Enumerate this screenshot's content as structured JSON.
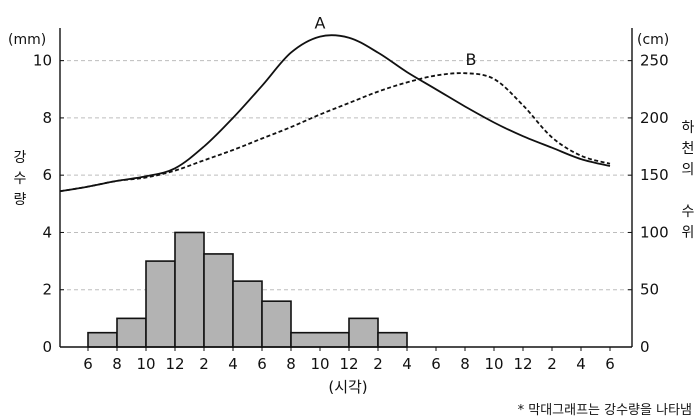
{
  "chart_data": {
    "type": "bar+line",
    "x_ticks": [
      "6",
      "8",
      "10",
      "12",
      "2",
      "4",
      "6",
      "8",
      "10",
      "12",
      "2",
      "4",
      "6",
      "8",
      "10",
      "12",
      "2",
      "4",
      "6"
    ],
    "xlabel": "(시각)",
    "y_left": {
      "unit": "(mm)",
      "label": [
        "강",
        "수",
        "량"
      ],
      "ylim": [
        0,
        11
      ],
      "ticks": [
        0,
        2,
        4,
        6,
        8,
        10
      ]
    },
    "y_right": {
      "unit": "(cm)",
      "label": [
        "하",
        "천",
        "의",
        "",
        "수",
        "위"
      ],
      "ylim": [
        0,
        275
      ],
      "ticks": [
        0,
        50,
        100,
        150,
        200,
        250
      ]
    },
    "grid": {
      "horizontal": true,
      "style": "dashed"
    },
    "rainfall": {
      "bins": [
        {
          "start": 0,
          "end": 1,
          "value": 0.5
        },
        {
          "start": 1,
          "end": 2,
          "value": 1.0
        },
        {
          "start": 2,
          "end": 3,
          "value": 3.0
        },
        {
          "start": 3,
          "end": 4,
          "value": 4.0
        },
        {
          "start": 4,
          "end": 5,
          "value": 3.25
        },
        {
          "start": 5,
          "end": 6,
          "value": 2.3
        },
        {
          "start": 6,
          "end": 7,
          "value": 1.6
        },
        {
          "start": 7,
          "end": 9,
          "value": 0.5
        },
        {
          "start": 9,
          "end": 10,
          "value": 1.0
        },
        {
          "start": 10,
          "end": 11,
          "value": 0.5
        }
      ],
      "color": "#b3b3b3"
    },
    "series": [
      {
        "name": "A",
        "style": "solid",
        "points": [
          [
            -1,
            136
          ],
          [
            0,
            140
          ],
          [
            1,
            145
          ],
          [
            2,
            149
          ],
          [
            3,
            156
          ],
          [
            4,
            175
          ],
          [
            5,
            200
          ],
          [
            6,
            228
          ],
          [
            7,
            257
          ],
          [
            8,
            271
          ],
          [
            9,
            270
          ],
          [
            10,
            257
          ],
          [
            11,
            240
          ],
          [
            12,
            225
          ],
          [
            13,
            210
          ],
          [
            14,
            196
          ],
          [
            15,
            184
          ],
          [
            16,
            174
          ],
          [
            17,
            164
          ],
          [
            18,
            158
          ]
        ]
      },
      {
        "name": "B",
        "style": "dashed",
        "points": [
          [
            -1,
            136
          ],
          [
            0,
            140
          ],
          [
            1,
            145
          ],
          [
            2,
            148
          ],
          [
            3,
            154
          ],
          [
            4,
            163
          ],
          [
            5,
            172
          ],
          [
            6,
            182
          ],
          [
            7,
            192
          ],
          [
            8,
            203
          ],
          [
            9,
            213
          ],
          [
            10,
            223
          ],
          [
            11,
            231
          ],
          [
            12,
            237
          ],
          [
            13,
            239
          ],
          [
            14,
            234
          ],
          [
            15,
            211
          ],
          [
            16,
            183
          ],
          [
            17,
            167
          ],
          [
            18,
            160
          ]
        ]
      }
    ]
  },
  "footnote": "* 막대그래프는 강수량을 나타냄"
}
